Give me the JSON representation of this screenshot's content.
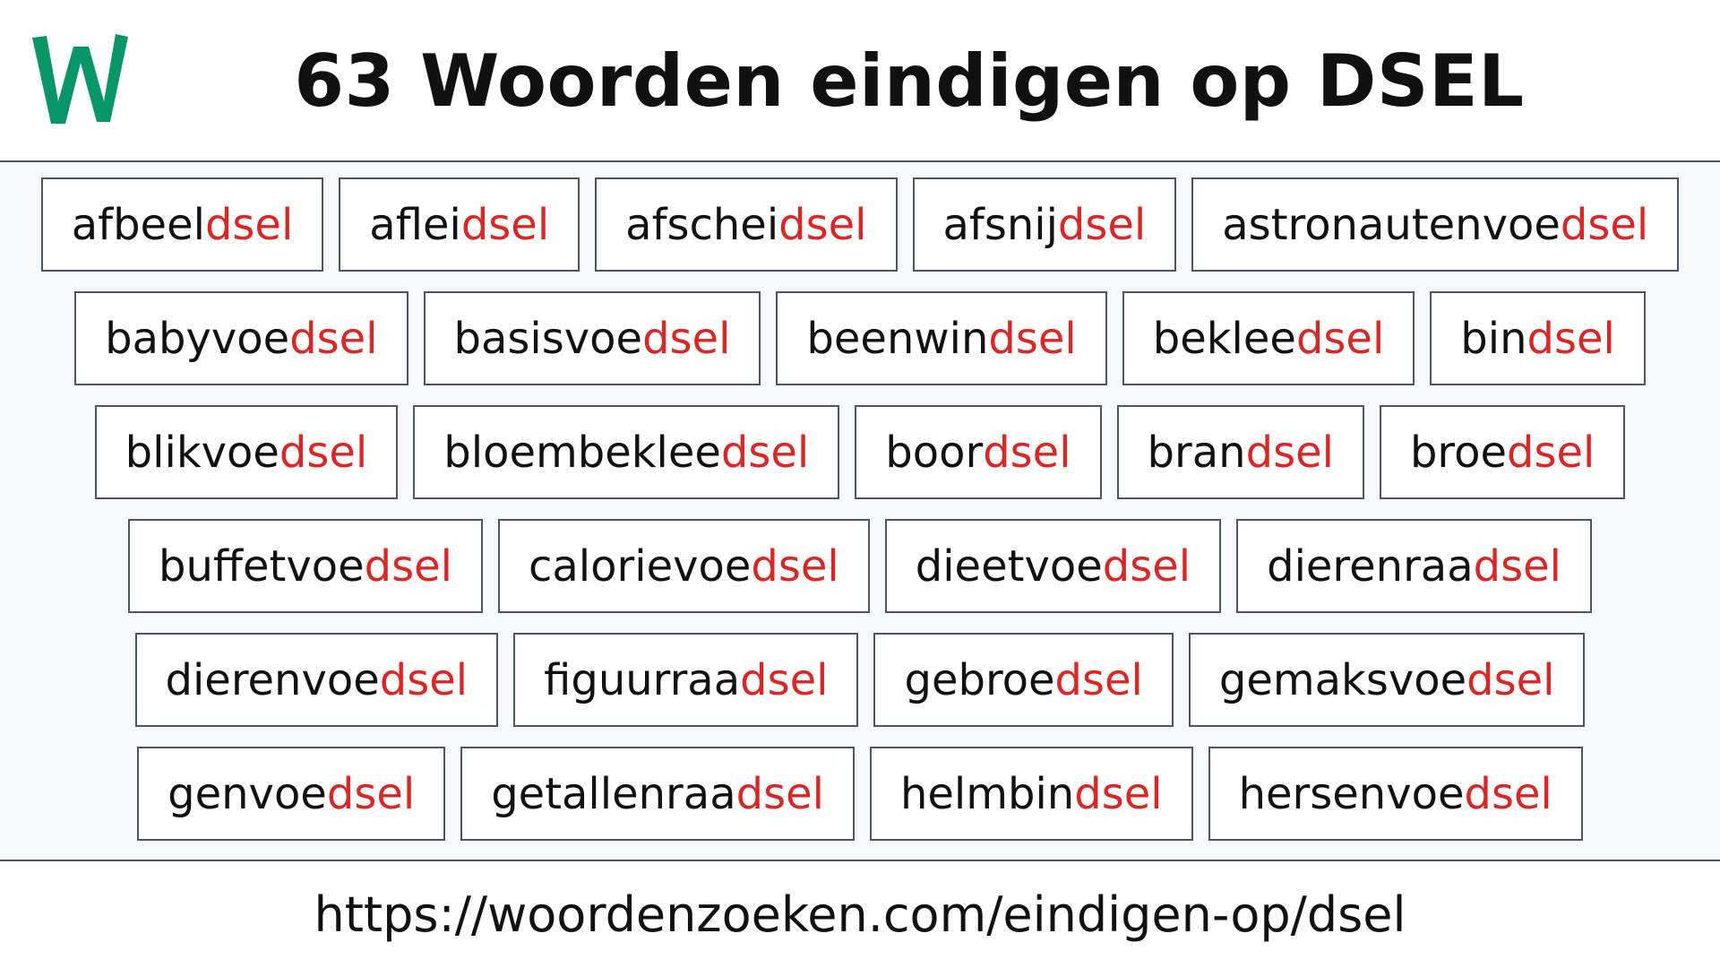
{
  "header": {
    "logo_letter": "W",
    "logo_color": "#069669",
    "title": "63 Woorden eindigen op DSEL"
  },
  "suffix_color": "#dc2626",
  "words": [
    {
      "prefix": "afbeel",
      "suffix": "dsel"
    },
    {
      "prefix": "aflei",
      "suffix": "dsel"
    },
    {
      "prefix": "afschei",
      "suffix": "dsel"
    },
    {
      "prefix": "afsnij",
      "suffix": "dsel"
    },
    {
      "prefix": "astronautenvoe",
      "suffix": "dsel"
    },
    {
      "prefix": "babyvoe",
      "suffix": "dsel"
    },
    {
      "prefix": "basisvoe",
      "suffix": "dsel"
    },
    {
      "prefix": "beenwin",
      "suffix": "dsel"
    },
    {
      "prefix": "beklee",
      "suffix": "dsel"
    },
    {
      "prefix": "bin",
      "suffix": "dsel"
    },
    {
      "prefix": "blikvoe",
      "suffix": "dsel"
    },
    {
      "prefix": "bloembeklee",
      "suffix": "dsel"
    },
    {
      "prefix": "boor",
      "suffix": "dsel"
    },
    {
      "prefix": "bran",
      "suffix": "dsel"
    },
    {
      "prefix": "broe",
      "suffix": "dsel"
    },
    {
      "prefix": "buffetvoe",
      "suffix": "dsel"
    },
    {
      "prefix": "calorievoe",
      "suffix": "dsel"
    },
    {
      "prefix": "dieetvoe",
      "suffix": "dsel"
    },
    {
      "prefix": "dierenraa",
      "suffix": "dsel"
    },
    {
      "prefix": "dierenvoe",
      "suffix": "dsel"
    },
    {
      "prefix": "figuurraa",
      "suffix": "dsel"
    },
    {
      "prefix": "gebroe",
      "suffix": "dsel"
    },
    {
      "prefix": "gemaksvoe",
      "suffix": "dsel"
    },
    {
      "prefix": "genvoe",
      "suffix": "dsel"
    },
    {
      "prefix": "getallenraa",
      "suffix": "dsel"
    },
    {
      "prefix": "helmbin",
      "suffix": "dsel"
    },
    {
      "prefix": "hersenvoe",
      "suffix": "dsel"
    }
  ],
  "footer": {
    "url": "https://woordenzoeken.com/eindigen-op/dsel"
  }
}
